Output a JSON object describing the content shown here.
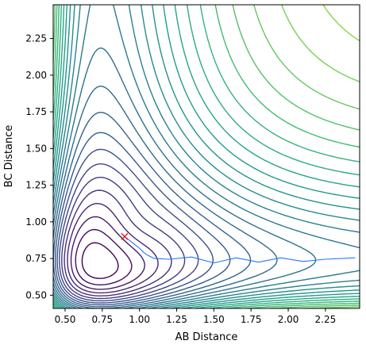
{
  "chart_data": {
    "type": "contour",
    "xlabel": "AB Distance",
    "ylabel": "BC Distance",
    "xlim": [
      0.42,
      2.48
    ],
    "ylim": [
      0.41,
      2.48
    ],
    "x_ticks": [
      "0.50",
      "0.75",
      "1.00",
      "1.25",
      "1.50",
      "1.75",
      "2.00",
      "2.25"
    ],
    "y_ticks": [
      "0.50",
      "0.75",
      "1.00",
      "1.25",
      "1.50",
      "1.75",
      "2.00",
      "2.25"
    ],
    "grid": false,
    "colormap": "viridis",
    "contour_levels": 30,
    "marker": {
      "x": 0.9,
      "y": 0.9,
      "symbol": "x",
      "color": "#ff0000"
    },
    "trajectory": {
      "x": [
        0.9,
        0.95,
        1.0,
        1.03,
        1.06,
        1.1,
        1.2,
        1.35,
        1.5,
        1.65,
        1.8,
        1.95,
        2.1,
        2.25,
        2.45
      ],
      "y": [
        0.9,
        0.86,
        0.82,
        0.79,
        0.77,
        0.75,
        0.745,
        0.76,
        0.72,
        0.755,
        0.725,
        0.755,
        0.73,
        0.745,
        0.755
      ]
    },
    "trajectory_color": "#1f77ff"
  }
}
